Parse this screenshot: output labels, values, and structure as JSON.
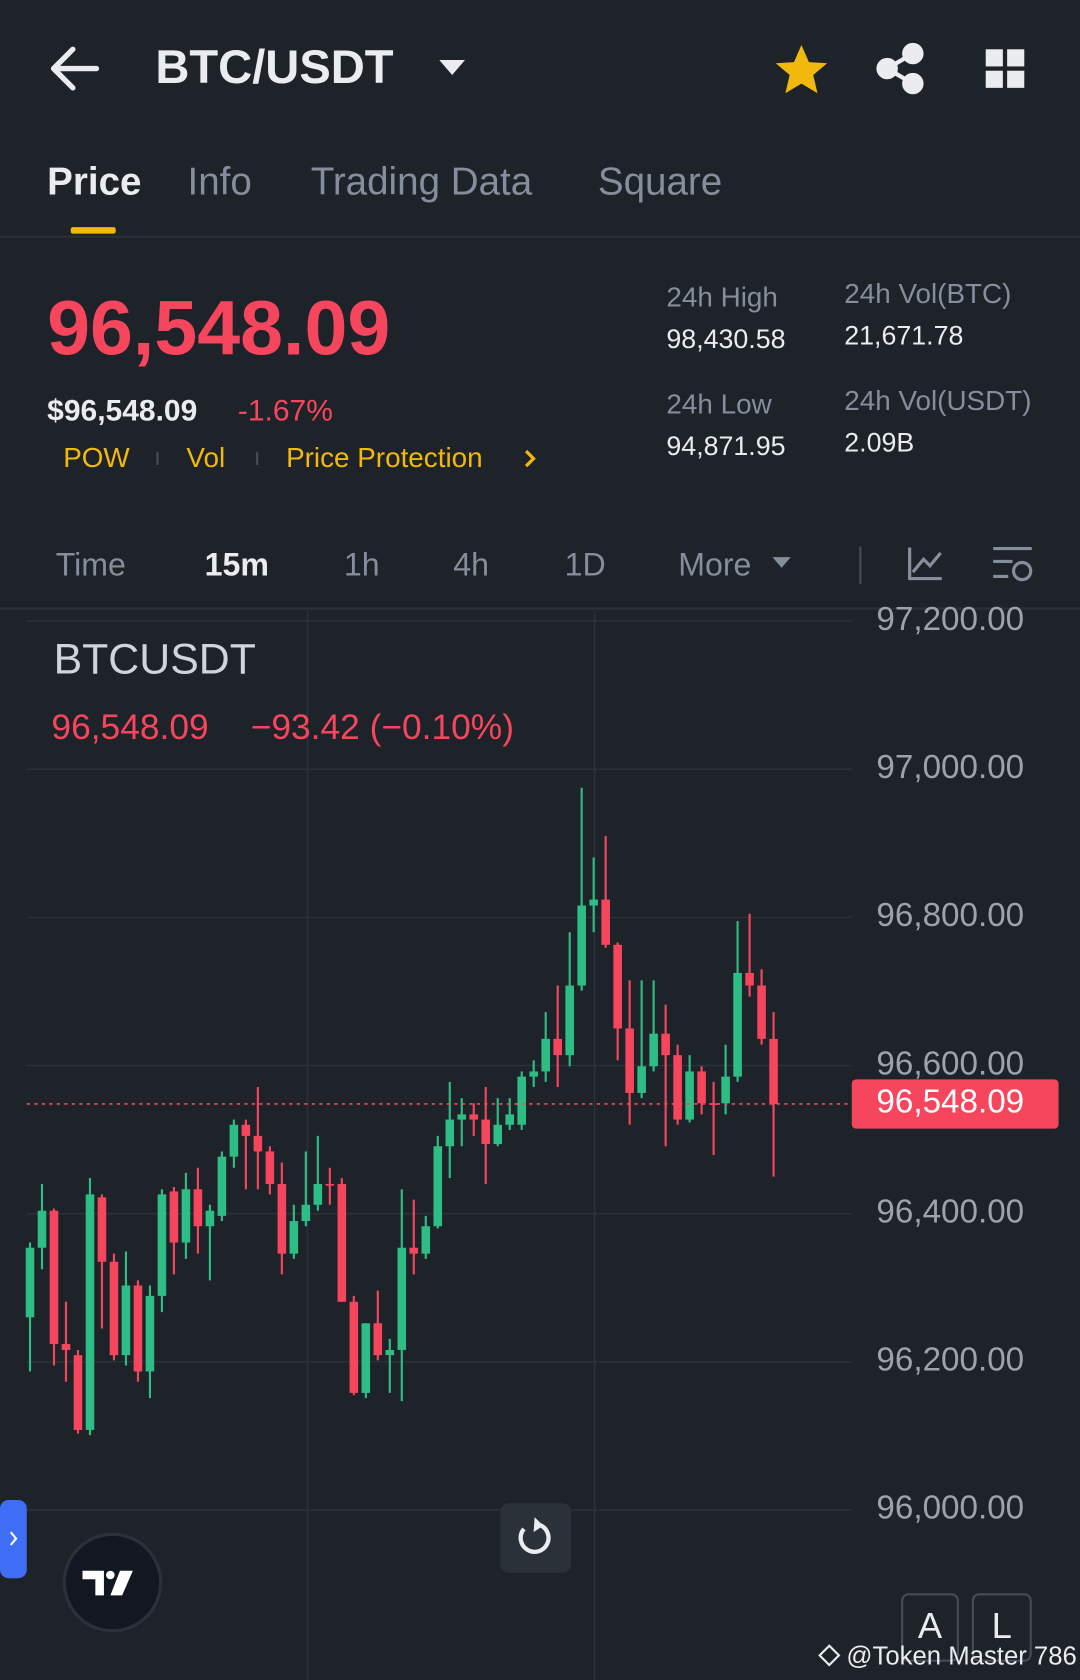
{
  "header": {
    "pair": "BTC/USDT"
  },
  "tabs": [
    "Price",
    "Info",
    "Trading Data",
    "Square"
  ],
  "price": {
    "last": "96,548.09",
    "usd": "$96,548.09",
    "change": "-1.67%",
    "tags": [
      "POW",
      "Vol",
      "Price Protection"
    ]
  },
  "stats": [
    {
      "label": "24h High",
      "value": "98,430.58"
    },
    {
      "label": "24h Vol(BTC)",
      "value": "21,671.78"
    },
    {
      "label": "24h Low",
      "value": "94,871.95"
    },
    {
      "label": "24h Vol(USDT)",
      "value": "2.09B"
    }
  ],
  "intervals": [
    "Time",
    "15m",
    "1h",
    "4h",
    "1D",
    "More"
  ],
  "chart_data": {
    "type": "candlestick",
    "title": "BTCUSDT",
    "legend": {
      "price": "96,548.09",
      "change": "−93.42 (−0.10%)"
    },
    "up_color": "#2ebd85",
    "down_color": "#f6465d",
    "ylim": [
      95782,
      97214
    ],
    "yticks": [
      {
        "value": 96000,
        "label": "96,000.00"
      },
      {
        "value": 96200,
        "label": "96,200.00"
      },
      {
        "value": 96400,
        "label": "96,400.00"
      },
      {
        "value": 96600,
        "label": "96,600.00"
      },
      {
        "value": 96800,
        "label": "96,800.00"
      },
      {
        "value": 97000,
        "label": "97,000.00"
      },
      {
        "value": 97200,
        "label": "97,200.00"
      }
    ],
    "grid": true,
    "last_price": {
      "value": 96548.09,
      "label": "96,548.09"
    },
    "open": [
      96260,
      96354,
      96404,
      96224,
      96209,
      96108,
      96422,
      96335,
      96209,
      96303,
      96187,
      96289,
      96430,
      96361,
      96433,
      96383,
      96397,
      96477,
      96520,
      96505,
      96484,
      96440,
      96346,
      96390,
      96412,
      96440,
      96440,
      96281,
      96158,
      96252,
      96209,
      96216,
      96354,
      96346,
      96383,
      96491,
      96527,
      96534,
      96527,
      96494,
      96520,
      96520,
      96585,
      96592,
      96636,
      96614,
      96708,
      96816,
      96824,
      96763,
      96650,
      96563,
      96599,
      96643,
      96614,
      96527,
      96592,
      96549,
      96549,
      96585,
      96725,
      96708,
      96636
    ],
    "high": [
      96361,
      96440,
      96407,
      96281,
      96216,
      96448,
      96426,
      96346,
      96349,
      96310,
      96303,
      96433,
      96436,
      96455,
      96462,
      96412,
      96484,
      96527,
      96527,
      96571,
      96491,
      96469,
      96412,
      96484,
      96505,
      96462,
      96448,
      96289,
      96252,
      96296,
      96231,
      96433,
      96419,
      96397,
      96505,
      96578,
      96556,
      96549,
      96571,
      96556,
      96556,
      96592,
      96607,
      96672,
      96708,
      96780,
      96975,
      96881,
      96910,
      96766,
      96715,
      96715,
      96715,
      96682,
      96628,
      96614,
      96599,
      96578,
      96628,
      96795,
      96805,
      96730,
      96672
    ],
    "low": [
      96187,
      96325,
      96195,
      96173,
      96103,
      96101,
      96245,
      96202,
      96195,
      96173,
      96151,
      96267,
      96318,
      96339,
      96346,
      96310,
      96390,
      96462,
      96433,
      96433,
      96426,
      96318,
      96339,
      96383,
      96404,
      96412,
      96281,
      96155,
      96151,
      96202,
      96158,
      96147,
      96318,
      96339,
      96380,
      96448,
      96491,
      96505,
      96440,
      96491,
      96513,
      96513,
      96571,
      96578,
      96571,
      96599,
      96701,
      96780,
      96759,
      96607,
      96520,
      96556,
      96592,
      96491,
      96520,
      96523,
      96534,
      96479,
      96534,
      96578,
      96693,
      96628,
      96450
    ],
    "close": [
      96354,
      96404,
      96224,
      96216,
      96108,
      96426,
      96335,
      96209,
      96303,
      96187,
      96289,
      96426,
      96361,
      96433,
      96383,
      96404,
      96477,
      96520,
      96505,
      96484,
      96440,
      96346,
      96390,
      96412,
      96440,
      96438,
      96281,
      96158,
      96252,
      96209,
      96216,
      96354,
      96346,
      96383,
      96491,
      96527,
      96534,
      96527,
      96494,
      96520,
      96534,
      96585,
      96592,
      96636,
      96614,
      96708,
      96816,
      96824,
      96763,
      96650,
      96563,
      96599,
      96643,
      96614,
      96527,
      96592,
      96549,
      96547,
      96585,
      96725,
      96708,
      96636,
      96548.09
    ]
  },
  "toggles": [
    "A",
    "L"
  ],
  "watermark": "@Token Master 786"
}
